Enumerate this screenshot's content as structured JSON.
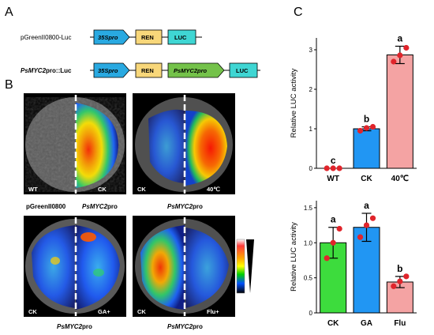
{
  "panel_a": {
    "label": "A",
    "constructs": [
      {
        "name": "pGreenII0800-Luc",
        "parts": [
          "35Spro",
          "REN",
          "LUC"
        ]
      },
      {
        "name_italic": "PsMYC2",
        "name_rest": "pro::Luc",
        "parts": [
          "35Spro",
          "REN",
          "PsMYC2pro",
          "LUC"
        ]
      }
    ],
    "part_colors": {
      "35Spro": "#29a9e1",
      "REN": "#f8d77a",
      "PsMYC2pro": "#74c24a",
      "LUC": "#3fd6d3"
    }
  },
  "panel_b": {
    "label": "B",
    "leaves": [
      {
        "left_label": "WT",
        "right_label": "CK",
        "caption": "pGreenII0800",
        "caption_italic": "PsMYC2",
        "caption_rest": "pro"
      },
      {
        "left_label": "CK",
        "right_label": "40℃",
        "caption": "",
        "caption_italic": "PsMYC2",
        "caption_rest": "pro"
      },
      {
        "left_label": "CK",
        "right_label": "GA+",
        "caption": "",
        "caption_italic": "PsMYC2",
        "caption_rest": "pro"
      },
      {
        "left_label": "CK",
        "right_label": "Flu+",
        "caption": "",
        "caption_italic": "PsMYC2",
        "caption_rest": "pro"
      }
    ]
  },
  "panel_c": {
    "label": "C"
  },
  "chart_data": [
    {
      "type": "bar",
      "categories": [
        "WT",
        "CK",
        "40℃"
      ],
      "values": [
        0.0,
        1.0,
        2.87
      ],
      "errors": [
        0.0,
        0.05,
        0.22
      ],
      "points": [
        [
          0.0,
          0.0,
          0.0
        ],
        [
          0.95,
          1.02,
          1.05
        ],
        [
          2.7,
          2.86,
          3.05
        ]
      ],
      "colors": [
        "#ffffff",
        "#2196f3",
        "#f4a3a3"
      ],
      "letters": [
        "c",
        "b",
        "a"
      ],
      "ylabel": "Relative LUC activity",
      "ylim": [
        0,
        3.3
      ],
      "yticks": [
        0,
        1,
        2,
        3
      ],
      "ytick_labels": [
        "0",
        "1",
        "2",
        "3"
      ]
    },
    {
      "type": "bar",
      "categories": [
        "CK",
        "GA",
        "Flu"
      ],
      "values": [
        1.0,
        1.22,
        0.44
      ],
      "errors": [
        0.22,
        0.2,
        0.08
      ],
      "points": [
        [
          0.78,
          1.0,
          1.2
        ],
        [
          1.08,
          1.25,
          1.35
        ],
        [
          0.38,
          0.45,
          0.52
        ]
      ],
      "colors": [
        "#3ddc3d",
        "#2196f3",
        "#f4a3a3"
      ],
      "letters": [
        "a",
        "a",
        "b"
      ],
      "ylabel": "Relative LUC activity",
      "ylim": [
        0,
        1.6
      ],
      "yticks": [
        0,
        0.5,
        1.0,
        1.5
      ],
      "ytick_labels": [
        "0",
        "0.5",
        "1.0",
        "1.5"
      ]
    }
  ]
}
